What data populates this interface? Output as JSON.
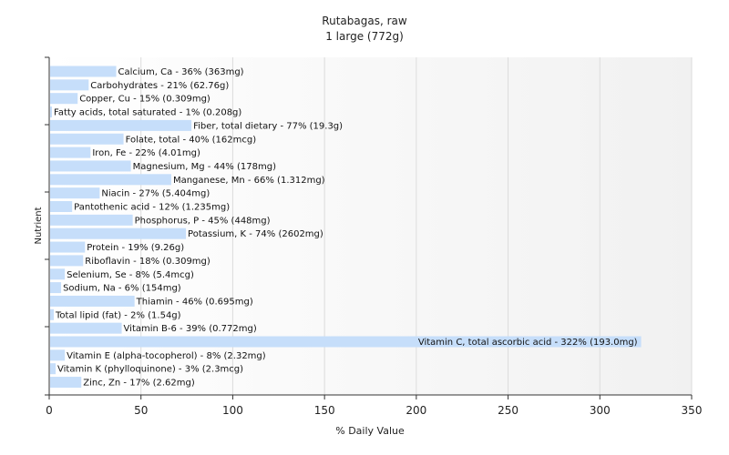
{
  "header": {
    "title": "Rutabagas, raw",
    "subtitle": "1 large (772g)"
  },
  "chart_data": {
    "type": "bar",
    "orientation": "horizontal",
    "title": "Rutabagas, raw",
    "subtitle": "1 large (772g)",
    "xlabel": "% Daily Value",
    "ylabel": "Nutrient",
    "xlim": [
      0,
      350
    ],
    "xticks": [
      0,
      50,
      100,
      150,
      200,
      250,
      300,
      350
    ],
    "grid": "vertical",
    "bar_color": "#c6defa",
    "categories": [
      "Calcium, Ca - 36% (363mg)",
      "Carbohydrates - 21% (62.76g)",
      "Copper, Cu - 15% (0.309mg)",
      "Fatty acids, total saturated - 1% (0.208g)",
      "Fiber, total dietary - 77% (19.3g)",
      "Folate, total - 40% (162mcg)",
      "Iron, Fe - 22% (4.01mg)",
      "Magnesium, Mg - 44% (178mg)",
      "Manganese, Mn - 66% (1.312mg)",
      "Niacin - 27% (5.404mg)",
      "Pantothenic acid - 12% (1.235mg)",
      "Phosphorus, P - 45% (448mg)",
      "Potassium, K - 74% (2602mg)",
      "Protein - 19% (9.26g)",
      "Riboflavin - 18% (0.309mg)",
      "Selenium, Se - 8% (5.4mcg)",
      "Sodium, Na - 6% (154mg)",
      "Thiamin - 46% (0.695mg)",
      "Total lipid (fat) - 2% (1.54g)",
      "Vitamin B-6 - 39% (0.772mg)",
      "Vitamin C, total ascorbic acid - 322% (193.0mg)",
      "Vitamin E (alpha-tocopherol) - 8% (2.32mg)",
      "Vitamin K (phylloquinone) - 3% (2.3mcg)",
      "Zinc, Zn - 17% (2.62mg)"
    ],
    "values": [
      36,
      21,
      15,
      1,
      77,
      40,
      22,
      44,
      66,
      27,
      12,
      45,
      74,
      19,
      18,
      8,
      6,
      46,
      2,
      39,
      322,
      8,
      3,
      17
    ]
  }
}
